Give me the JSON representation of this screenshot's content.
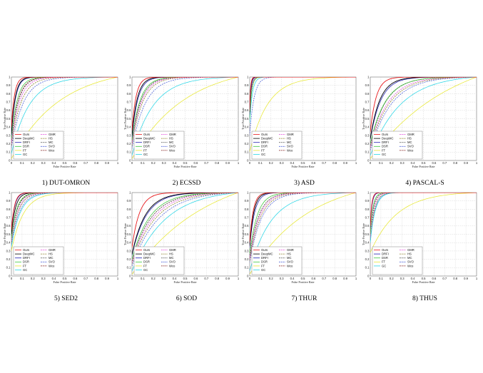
{
  "colors": {
    "Ours": "#e8191c",
    "DeepMC": "#000000",
    "DRFI": "#1f1fb0",
    "DSR": "#3cc83c",
    "FT": "#e8e832",
    "GC": "#28d6e6",
    "GMR": "#e040d8",
    "HS": "#8a7a20",
    "MC": "#606060",
    "SVO": "#4a5fd8",
    "Wco": "#7a1010"
  },
  "dashed": [
    "GMR",
    "HS",
    "MC",
    "SVO",
    "Wco"
  ],
  "chart_data": [
    {
      "type": "line",
      "caption": "1) DUT-OMRON",
      "xlabel": "False Positive Rate",
      "ylabel": "True Positive Rate",
      "xlim": [
        0,
        1
      ],
      "ylim": [
        0,
        1
      ],
      "xticks": [
        "0",
        "0.1",
        "0.2",
        "0.3",
        "0.4",
        "0.5",
        "0.6",
        "0.7",
        "0.8",
        "0.9",
        "1"
      ],
      "yticks": [
        "0",
        "0.1",
        "0.2",
        "0.3",
        "0.4",
        "0.5",
        "0.6",
        "0.7",
        "0.8",
        "0.9",
        "1"
      ],
      "legend": [
        "Ours",
        "DeepMC",
        "DRFI",
        "DSR",
        "FT",
        "GC",
        "GMR",
        "HS",
        "MC",
        "SVO",
        "Wco"
      ],
      "series": [
        {
          "name": "Ours",
          "start": 0.4,
          "shape": 35
        },
        {
          "name": "DeepMC",
          "start": 0.32,
          "shape": 28
        },
        {
          "name": "DRFI",
          "start": 0.3,
          "shape": 26
        },
        {
          "name": "DSR",
          "start": 0.26,
          "shape": 18
        },
        {
          "name": "FT",
          "start": 0.02,
          "shape": 2.2
        },
        {
          "name": "GC",
          "start": 0.08,
          "shape": 6
        },
        {
          "name": "GMR",
          "start": 0.2,
          "shape": 13
        },
        {
          "name": "HS",
          "start": 0.18,
          "shape": 11
        },
        {
          "name": "MC",
          "start": 0.22,
          "shape": 15
        },
        {
          "name": "SVO",
          "start": 0.15,
          "shape": 9
        },
        {
          "name": "Wco",
          "start": 0.22,
          "shape": 16
        }
      ]
    },
    {
      "type": "line",
      "caption": "2) ECSSD",
      "xlabel": "False Positive Rate",
      "ylabel": "True Positive Rate",
      "xlim": [
        0,
        1
      ],
      "ylim": [
        0,
        1
      ],
      "xticks": [
        "0",
        "0.1",
        "0.2",
        "0.3",
        "0.4",
        "0.5",
        "0.6",
        "0.7",
        "0.8",
        "0.9",
        "1"
      ],
      "yticks": [
        "0",
        "0.1",
        "0.2",
        "0.3",
        "0.4",
        "0.5",
        "0.6",
        "0.7",
        "0.8",
        "0.9",
        "1"
      ],
      "legend": [
        "Ours",
        "DeepMC",
        "DRFI",
        "DSR",
        "FT",
        "GC",
        "GMR",
        "HS",
        "MC",
        "SVO",
        "Wco"
      ],
      "series": [
        {
          "name": "Ours",
          "start": 0.36,
          "shape": 26
        },
        {
          "name": "DeepMC",
          "start": 0.3,
          "shape": 20
        },
        {
          "name": "DRFI",
          "start": 0.28,
          "shape": 18
        },
        {
          "name": "DSR",
          "start": 0.24,
          "shape": 13
        },
        {
          "name": "FT",
          "start": 0.02,
          "shape": 2.0
        },
        {
          "name": "GC",
          "start": 0.06,
          "shape": 5
        },
        {
          "name": "GMR",
          "start": 0.2,
          "shape": 11
        },
        {
          "name": "HS",
          "start": 0.18,
          "shape": 10
        },
        {
          "name": "MC",
          "start": 0.22,
          "shape": 12
        },
        {
          "name": "SVO",
          "start": 0.14,
          "shape": 8
        },
        {
          "name": "Wco",
          "start": 0.22,
          "shape": 12
        }
      ]
    },
    {
      "type": "line",
      "caption": "3) ASD",
      "xlabel": "False Positive Rate",
      "ylabel": "True Positive Rate",
      "xlim": [
        0,
        1
      ],
      "ylim": [
        0,
        1
      ],
      "xticks": [
        "0",
        "0.1",
        "0.2",
        "0.3",
        "0.4",
        "0.5",
        "0.6",
        "0.7",
        "0.8",
        "0.9",
        "1"
      ],
      "yticks": [
        "0",
        "0.1",
        "0.2",
        "0.3",
        "0.4",
        "0.5",
        "0.6",
        "0.7",
        "0.8",
        "0.9",
        "1"
      ],
      "legend": [
        "Ours",
        "DeepMC",
        "DRFI",
        "DSR",
        "FT",
        "GC",
        "GMR",
        "HS",
        "MC",
        "SVO",
        "Wco"
      ],
      "series": [
        {
          "name": "Ours",
          "start": 0.6,
          "shape": 120
        },
        {
          "name": "DeepMC",
          "start": 0.58,
          "shape": 110
        },
        {
          "name": "DRFI",
          "start": 0.55,
          "shape": 90
        },
        {
          "name": "DSR",
          "start": 0.5,
          "shape": 60
        },
        {
          "name": "FT",
          "start": 0.1,
          "shape": 6
        },
        {
          "name": "GC",
          "start": 0.45,
          "shape": 40
        },
        {
          "name": "GMR",
          "start": 0.52,
          "shape": 70
        },
        {
          "name": "HS",
          "start": 0.5,
          "shape": 55
        },
        {
          "name": "MC",
          "start": 0.52,
          "shape": 65
        },
        {
          "name": "SVO",
          "start": 0.3,
          "shape": 25
        },
        {
          "name": "Wco",
          "start": 0.52,
          "shape": 70
        }
      ]
    },
    {
      "type": "line",
      "caption": "4) PASCAL-S",
      "xlabel": "False Positive Rate",
      "ylabel": "True Positive Rate",
      "xlim": [
        0,
        1
      ],
      "ylim": [
        0,
        1
      ],
      "xticks": [
        "0",
        "0.1",
        "0.2",
        "0.3",
        "0.4",
        "0.5",
        "0.6",
        "0.7",
        "0.8",
        "0.9",
        "1"
      ],
      "yticks": [
        "0",
        "0.1",
        "0.2",
        "0.3",
        "0.4",
        "0.5",
        "0.6",
        "0.7",
        "0.8",
        "0.9",
        "1"
      ],
      "legend": [
        "Ours",
        "DeepMC",
        "DRFI",
        "DSR",
        "FT",
        "GC",
        "GMR",
        "HS",
        "MC",
        "SVO",
        "Wco"
      ],
      "series": [
        {
          "name": "Ours",
          "start": 0.34,
          "shape": 18
        },
        {
          "name": "DeepMC",
          "start": 0.26,
          "shape": 11
        },
        {
          "name": "DRFI",
          "start": 0.25,
          "shape": 10
        },
        {
          "name": "DSR",
          "start": 0.2,
          "shape": 7
        },
        {
          "name": "FT",
          "start": 0.02,
          "shape": 1.3
        },
        {
          "name": "GC",
          "start": 0.06,
          "shape": 3.5
        },
        {
          "name": "GMR",
          "start": 0.16,
          "shape": 6
        },
        {
          "name": "HS",
          "start": 0.15,
          "shape": 5.5
        },
        {
          "name": "MC",
          "start": 0.18,
          "shape": 7
        },
        {
          "name": "SVO",
          "start": 0.12,
          "shape": 5
        },
        {
          "name": "Wco",
          "start": 0.18,
          "shape": 7
        }
      ]
    },
    {
      "type": "line",
      "caption": "5) SED2",
      "xlabel": "False Positive Rate",
      "ylabel": "True Positive Rate",
      "xlim": [
        0,
        1
      ],
      "ylim": [
        0,
        1
      ],
      "xticks": [
        "0",
        "0.1",
        "0.2",
        "0.3",
        "0.4",
        "0.5",
        "0.6",
        "0.7",
        "0.8",
        "0.9",
        "1"
      ],
      "yticks": [
        "0",
        "0.1",
        "0.2",
        "0.3",
        "0.4",
        "0.5",
        "0.6",
        "0.7",
        "0.8",
        "0.9",
        "1"
      ],
      "legend": [
        "Ours",
        "DeepMC",
        "DRFI",
        "DSR",
        "FT",
        "GC",
        "GMR",
        "HS",
        "MC",
        "SVO",
        "Wco"
      ],
      "series": [
        {
          "name": "Ours",
          "start": 0.55,
          "shape": 35
        },
        {
          "name": "DeepMC",
          "start": 0.5,
          "shape": 26
        },
        {
          "name": "DRFI",
          "start": 0.55,
          "shape": 32
        },
        {
          "name": "DSR",
          "start": 0.45,
          "shape": 20
        },
        {
          "name": "FT",
          "start": 0.3,
          "shape": 9
        },
        {
          "name": "GC",
          "start": 0.35,
          "shape": 12
        },
        {
          "name": "GMR",
          "start": 0.42,
          "shape": 16
        },
        {
          "name": "HS",
          "start": 0.4,
          "shape": 15
        },
        {
          "name": "MC",
          "start": 0.45,
          "shape": 18
        },
        {
          "name": "SVO",
          "start": 0.38,
          "shape": 13
        },
        {
          "name": "Wco",
          "start": 0.45,
          "shape": 19
        }
      ]
    },
    {
      "type": "line",
      "caption": "6) SOD",
      "xlabel": "False Positive Rate",
      "ylabel": "True Positive Rate",
      "xlim": [
        0,
        1
      ],
      "ylim": [
        0,
        1
      ],
      "xticks": [
        "0",
        "0.1",
        "0.2",
        "0.3",
        "0.4",
        "0.5",
        "0.6",
        "0.7",
        "0.8",
        "0.9",
        "1"
      ],
      "yticks": [
        "0",
        "0.1",
        "0.2",
        "0.3",
        "0.4",
        "0.5",
        "0.6",
        "0.7",
        "0.8",
        "0.9",
        "1"
      ],
      "legend": [
        "Ours",
        "DeepMC",
        "DRFI",
        "DSR",
        "FT",
        "GC",
        "GMR",
        "HS",
        "MC",
        "SVO",
        "Wco"
      ],
      "series": [
        {
          "name": "Ours",
          "start": 0.34,
          "shape": 14
        },
        {
          "name": "DeepMC",
          "start": 0.26,
          "shape": 8
        },
        {
          "name": "DRFI",
          "start": 0.25,
          "shape": 7.5
        },
        {
          "name": "DSR",
          "start": 0.2,
          "shape": 6
        },
        {
          "name": "FT",
          "start": 0.02,
          "shape": 1.4
        },
        {
          "name": "GC",
          "start": 0.06,
          "shape": 3.2
        },
        {
          "name": "GMR",
          "start": 0.16,
          "shape": 5
        },
        {
          "name": "HS",
          "start": 0.15,
          "shape": 4.5
        },
        {
          "name": "MC",
          "start": 0.18,
          "shape": 5.5
        },
        {
          "name": "SVO",
          "start": 0.12,
          "shape": 4
        },
        {
          "name": "Wco",
          "start": 0.18,
          "shape": 5.5
        }
      ]
    },
    {
      "type": "line",
      "caption": "7) THUR",
      "xlabel": "False Positive Rate",
      "ylabel": "True Positive Rate",
      "xlim": [
        0,
        1
      ],
      "ylim": [
        0,
        1
      ],
      "xticks": [
        "0",
        "0.1",
        "0.2",
        "0.3",
        "0.4",
        "0.5",
        "0.6",
        "0.7",
        "0.8",
        "0.9",
        "1"
      ],
      "yticks": [
        "0",
        "0.1",
        "0.2",
        "0.3",
        "0.4",
        "0.5",
        "0.6",
        "0.7",
        "0.8",
        "0.9",
        "1"
      ],
      "legend": [
        "Ours",
        "DeepMC",
        "DRFI",
        "DSR",
        "FT",
        "GC",
        "GMR",
        "HS",
        "MC",
        "SVO",
        "Wco"
      ],
      "series": [
        {
          "name": "Ours",
          "start": 0.4,
          "shape": 30
        },
        {
          "name": "DeepMC",
          "start": 0.36,
          "shape": 26
        },
        {
          "name": "DRFI",
          "start": 0.34,
          "shape": 22
        },
        {
          "name": "DSR",
          "start": 0.26,
          "shape": 14
        },
        {
          "name": "FT",
          "start": 0.02,
          "shape": 1.8
        },
        {
          "name": "GC",
          "start": 0.06,
          "shape": 5
        },
        {
          "name": "GMR",
          "start": 0.2,
          "shape": 11
        },
        {
          "name": "HS",
          "start": 0.18,
          "shape": 10
        },
        {
          "name": "MC",
          "start": 0.22,
          "shape": 12
        },
        {
          "name": "SVO",
          "start": 0.16,
          "shape": 9
        },
        {
          "name": "Wco",
          "start": 0.22,
          "shape": 12
        }
      ]
    },
    {
      "type": "line",
      "caption": "8) THUS",
      "xlabel": "False Positive Rate",
      "ylabel": "True Positive Rate",
      "xlim": [
        0,
        1
      ],
      "ylim": [
        0,
        1
      ],
      "xticks": [
        "0",
        "0.1",
        "0.2",
        "0.3",
        "0.4",
        "0.5",
        "0.6",
        "0.7",
        "0.8",
        "0.9",
        "1"
      ],
      "yticks": [
        "0",
        "0.1",
        "0.2",
        "0.3",
        "0.4",
        "0.5",
        "0.6",
        "0.7",
        "0.8",
        "0.9",
        "1"
      ],
      "legend": [
        "Ours",
        "DRFI",
        "DSR",
        "FT",
        "GC",
        "GMR",
        "HS",
        "MC",
        "SVO",
        "Wco"
      ],
      "series": [
        {
          "name": "Ours",
          "start": 0.6,
          "shape": 70
        },
        {
          "name": "DRFI",
          "start": 0.58,
          "shape": 60
        },
        {
          "name": "DSR",
          "start": 0.5,
          "shape": 40
        },
        {
          "name": "FT",
          "start": 0.28,
          "shape": 4
        },
        {
          "name": "GC",
          "start": 0.4,
          "shape": 22
        },
        {
          "name": "GMR",
          "start": 0.45,
          "shape": 30
        },
        {
          "name": "HS",
          "start": 0.42,
          "shape": 26
        },
        {
          "name": "MC",
          "start": 0.48,
          "shape": 34
        },
        {
          "name": "SVO",
          "start": 0.4,
          "shape": 24
        },
        {
          "name": "Wco",
          "start": 0.48,
          "shape": 34
        }
      ]
    }
  ]
}
